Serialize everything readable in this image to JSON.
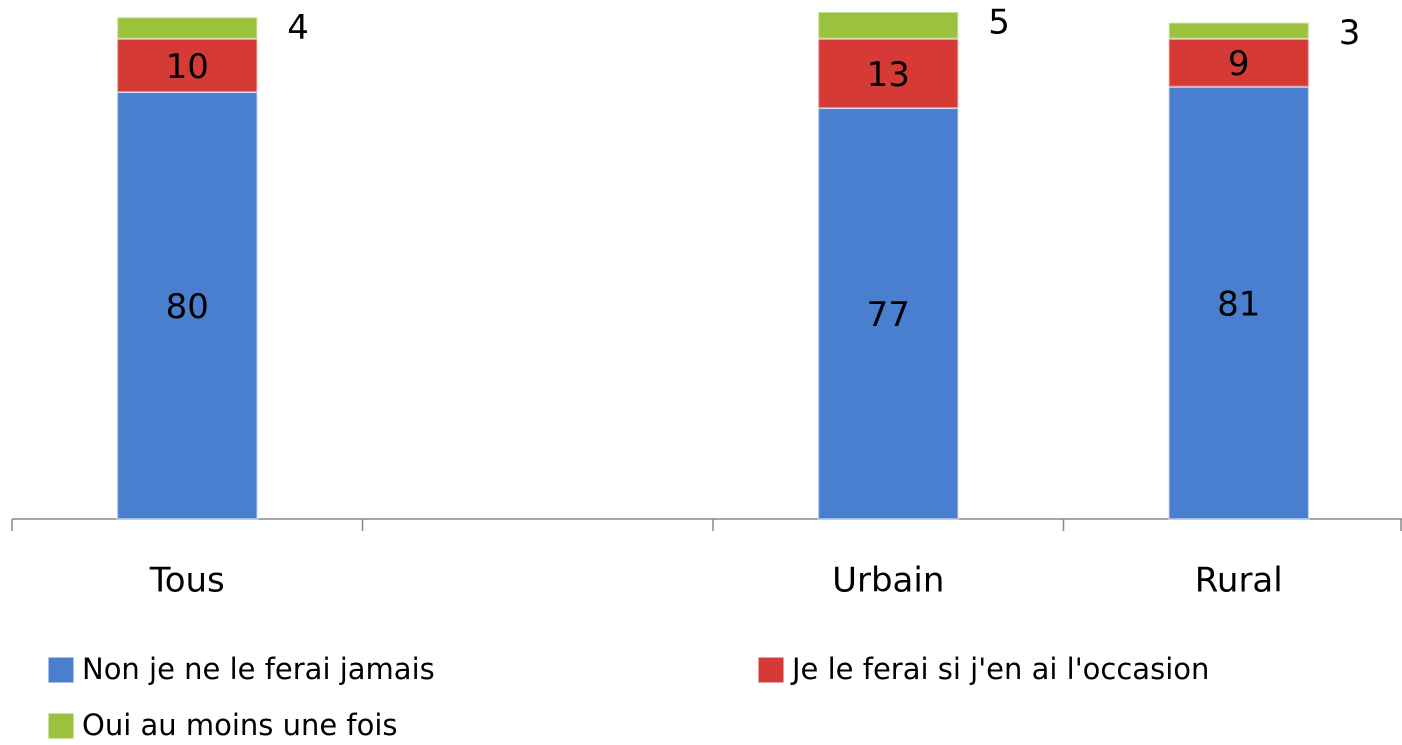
{
  "chart_data": {
    "type": "stacked_bar",
    "categories": [
      "Tous",
      null,
      "Urbain",
      "Rural"
    ],
    "series": [
      {
        "name": "Non je ne le ferai jamais",
        "color": "#4a7fd0",
        "values": [
          80,
          null,
          77,
          81
        ]
      },
      {
        "name": "Je le ferai si j'en ai l'occasion",
        "color": "#d63a36",
        "values": [
          10,
          null,
          13,
          9
        ]
      },
      {
        "name": "Oui au moins une fois",
        "color": "#9bc23c",
        "values": [
          4,
          null,
          5,
          3
        ]
      }
    ],
    "ylim": [
      0,
      95
    ],
    "legend": "bottom"
  }
}
